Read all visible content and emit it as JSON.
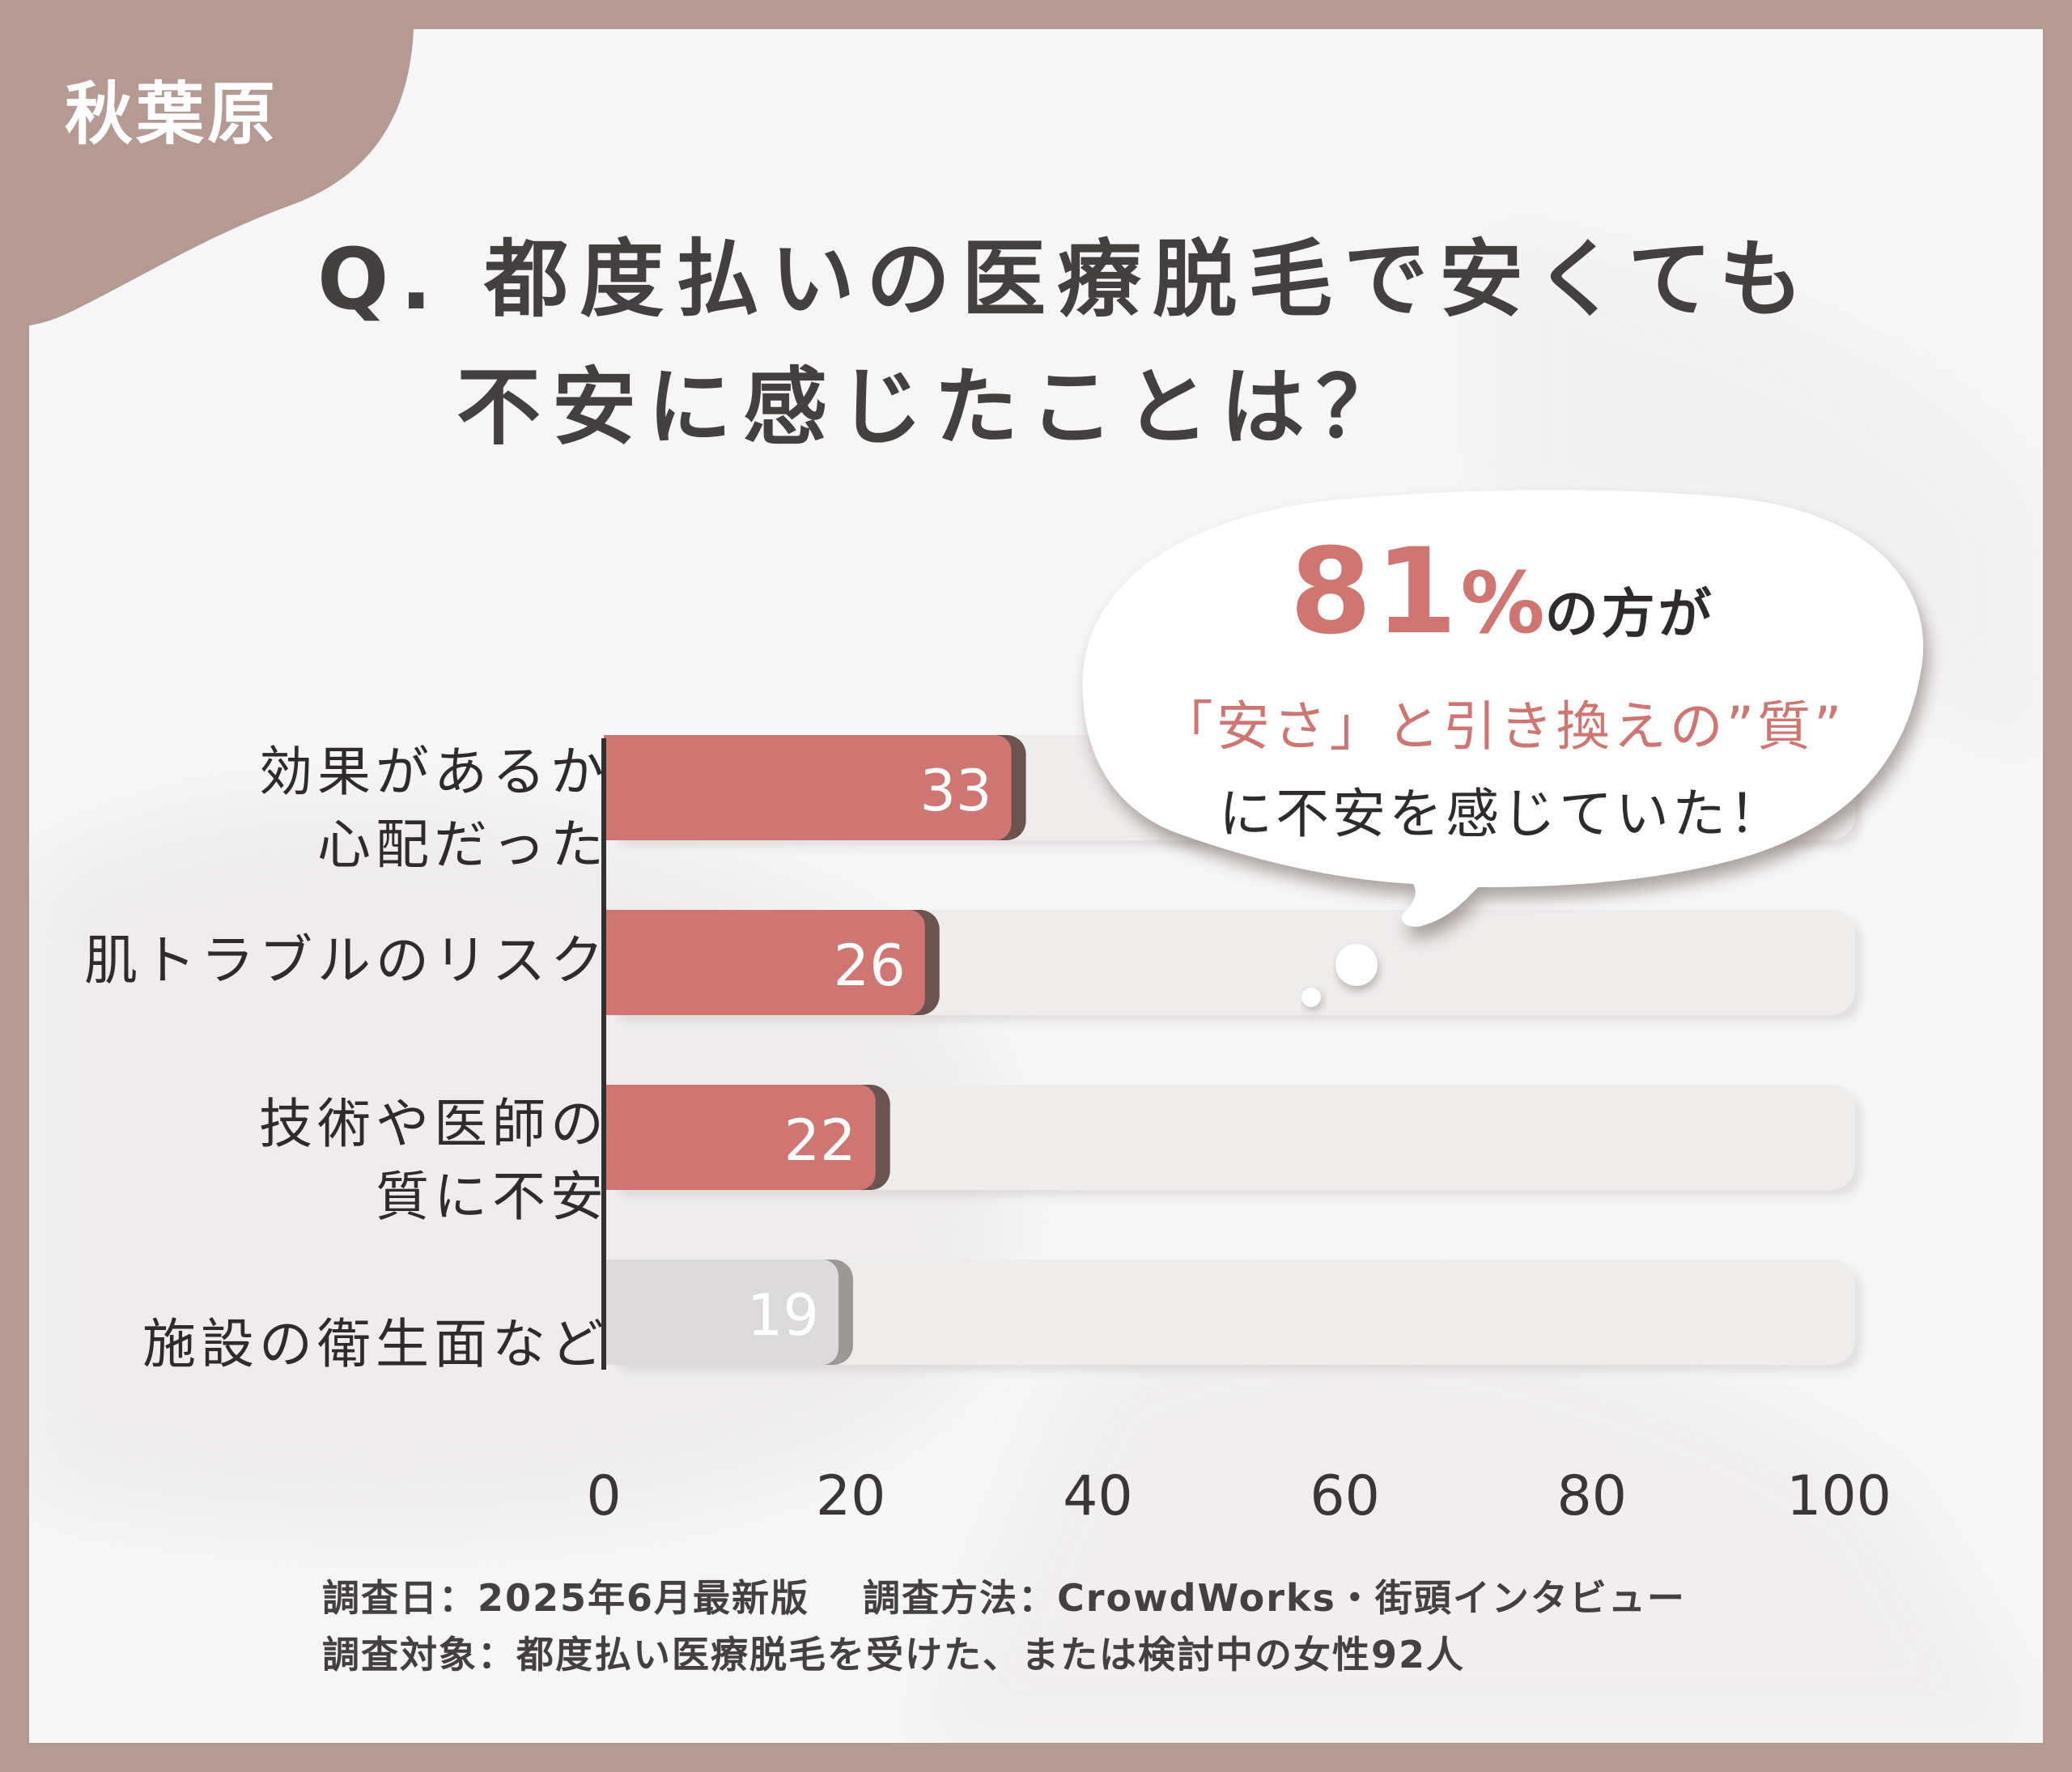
{
  "location_tag": "秋葉原",
  "title": {
    "line1": "Q. 都度払いの医療脱毛で安くても",
    "line2": "不安に感じたことは？"
  },
  "chart_data": {
    "type": "bar",
    "orientation": "horizontal",
    "categories": [
      [
        "効果があるか",
        "心配だった"
      ],
      [
        "肌トラブルのリスク"
      ],
      [
        "技術や医師の",
        "質に不安"
      ],
      [
        "施設の衛生面など"
      ]
    ],
    "values": [
      33,
      26,
      22,
      19
    ],
    "value_labels": [
      "33",
      "26",
      "22",
      "19"
    ],
    "bar_colors": [
      "#cf7673",
      "#cf7673",
      "#cf7673",
      "#dcdada"
    ],
    "track_color": "#efecec",
    "xlim": [
      0,
      100
    ],
    "xticks": [
      0,
      20,
      40,
      60,
      80,
      100
    ],
    "xtick_labels": [
      "0",
      "20",
      "40",
      "60",
      "80",
      "100"
    ],
    "grid": false,
    "legend": "none"
  },
  "callout": {
    "percent": "81",
    "percent_suffix_symbol": "%",
    "line1_rest": "の方が",
    "line2": "「安さ」と引き換えの”質”",
    "line3": "に不安を感じていた！"
  },
  "footnotes": {
    "line1": "調査日：2025年6月最新版　 調査方法：CrowdWorks・街頭インタビュー",
    "line2": "調査対象：都度払い医療脱毛を受けた、または検討中の女性92人"
  },
  "colors": {
    "frame": "#b49a92",
    "accent": "#cf7673",
    "text": "#2f2b2b"
  }
}
